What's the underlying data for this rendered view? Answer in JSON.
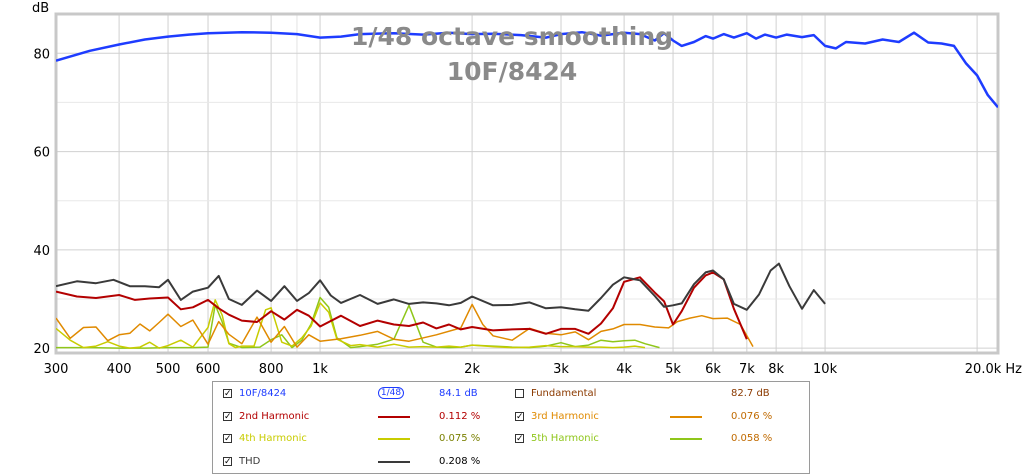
{
  "chart_data": {
    "type": "line",
    "title": "1/48 octave smoothing",
    "subtitle": "10F/8424",
    "ylabel": "dB",
    "x_scale": "log",
    "xlim": [
      300,
      22000
    ],
    "ylim": [
      19,
      88
    ],
    "yticks": [
      20,
      40,
      60,
      80
    ],
    "xtick_labels": [
      {
        "v": 300,
        "t": "300"
      },
      {
        "v": 400,
        "t": "400"
      },
      {
        "v": 500,
        "t": "500"
      },
      {
        "v": 600,
        "t": "600"
      },
      {
        "v": 800,
        "t": "800"
      },
      {
        "v": 1000,
        "t": "1k"
      },
      {
        "v": 2000,
        "t": "2k"
      },
      {
        "v": 3000,
        "t": "3k"
      },
      {
        "v": 4000,
        "t": "4k"
      },
      {
        "v": 5000,
        "t": "5k"
      },
      {
        "v": 6000,
        "t": "6k"
      },
      {
        "v": 7000,
        "t": "7k"
      },
      {
        "v": 8000,
        "t": "8k"
      },
      {
        "v": 10000,
        "t": "10k"
      },
      {
        "v": 20000,
        "t": "20.0k Hz"
      }
    ],
    "grid": true,
    "series": [
      {
        "name": "10F/8424",
        "color": "#1e3cff",
        "width": 2.5,
        "x": [
          300,
          350,
          400,
          450,
          500,
          550,
          600,
          700,
          800,
          900,
          1000,
          1100,
          1200,
          1400,
          1600,
          1800,
          2000,
          2200,
          2500,
          2800,
          3000,
          3300,
          3600,
          4000,
          4300,
          4600,
          4800,
          5000,
          5200,
          5500,
          5800,
          6000,
          6300,
          6600,
          7000,
          7300,
          7600,
          8000,
          8400,
          9000,
          9500,
          10000,
          10500,
          11000,
          12000,
          13000,
          14000,
          15000,
          16000,
          17000,
          18000,
          19000,
          20000,
          21000,
          22000
        ],
        "y": [
          78.5,
          80.5,
          81.8,
          82.8,
          83.4,
          83.8,
          84.1,
          84.3,
          84.2,
          83.9,
          83.2,
          83.4,
          83.9,
          84.1,
          83.8,
          84.2,
          83.9,
          84.0,
          83.7,
          83.2,
          83.9,
          84.3,
          83.6,
          84.2,
          83.9,
          82.6,
          84.1,
          82.6,
          81.5,
          82.3,
          83.5,
          83.0,
          83.9,
          83.2,
          84.1,
          83.0,
          83.8,
          83.2,
          83.8,
          83.3,
          83.7,
          81.5,
          81.0,
          82.3,
          82.0,
          82.8,
          82.3,
          84.2,
          82.2,
          82.0,
          81.5,
          78.0,
          75.5,
          71.5,
          69.0
        ]
      },
      {
        "name": "2nd Harmonic",
        "color": "#b30000",
        "width": 2,
        "x": [
          300,
          330,
          360,
          400,
          430,
          460,
          500,
          530,
          560,
          600,
          630,
          660,
          700,
          750,
          800,
          850,
          900,
          950,
          1000,
          1100,
          1200,
          1300,
          1400,
          1500,
          1600,
          1700,
          1800,
          1900,
          2000,
          2200,
          2400,
          2600,
          2800,
          3000,
          3200,
          3400,
          3600,
          3800,
          4000,
          4300,
          4600,
          4800,
          5000,
          5200,
          5500,
          5800,
          6000,
          6300,
          6600,
          7000
        ],
        "y": [
          31.5,
          30.5,
          30.2,
          30.8,
          29.8,
          30.1,
          30.3,
          27.9,
          28.3,
          29.8,
          28.1,
          26.8,
          25.6,
          25.3,
          27.5,
          25.8,
          27.8,
          26.6,
          24.4,
          26.6,
          24.5,
          25.6,
          24.8,
          24.5,
          25.2,
          24.0,
          24.8,
          23.8,
          24.3,
          23.6,
          23.8,
          23.9,
          22.9,
          23.9,
          23.9,
          22.9,
          25.0,
          28.1,
          33.5,
          34.4,
          31.3,
          29.5,
          24.8,
          27.5,
          32.3,
          34.8,
          35.4,
          34.0,
          28.0,
          21.8
        ]
      },
      {
        "name": "3rd Harmonic",
        "color": "#e08a00",
        "width": 1.5,
        "x": [
          300,
          320,
          340,
          360,
          380,
          400,
          420,
          440,
          460,
          480,
          500,
          530,
          560,
          600,
          630,
          660,
          700,
          750,
          800,
          850,
          900,
          950,
          1000,
          1100,
          1200,
          1300,
          1400,
          1500,
          1700,
          1900,
          2000,
          2100,
          2200,
          2400,
          2600,
          2800,
          3000,
          3200,
          3400,
          3600,
          3800,
          4000,
          4300,
          4600,
          4900,
          5100,
          5400,
          5700,
          6000,
          6400,
          6800,
          7200
        ],
        "y": [
          26.1,
          22.0,
          24.2,
          24.3,
          21.5,
          22.7,
          23.0,
          24.9,
          23.5,
          25.2,
          26.9,
          24.4,
          25.7,
          20.8,
          25.4,
          22.8,
          20.9,
          26.3,
          21.2,
          24.4,
          20.2,
          22.7,
          21.4,
          21.9,
          22.6,
          23.4,
          21.8,
          21.4,
          22.7,
          24.1,
          28.9,
          24.8,
          22.5,
          21.6,
          24.0,
          23.0,
          22.7,
          23.3,
          21.7,
          23.4,
          23.9,
          24.8,
          24.8,
          24.3,
          24.1,
          25.4,
          26.1,
          26.6,
          26.0,
          26.1,
          24.8,
          20.3
        ]
      },
      {
        "name": "4th Harmonic",
        "color": "#c8cc00",
        "width": 1.5,
        "x": [
          300,
          320,
          340,
          360,
          380,
          400,
          420,
          440,
          460,
          480,
          500,
          530,
          560,
          600,
          620,
          640,
          660,
          680,
          700,
          740,
          780,
          800,
          840,
          880,
          920,
          960,
          1000,
          1040,
          1080,
          1150,
          1200,
          1300,
          1400,
          1500,
          1600,
          1700,
          1800,
          1900,
          2000,
          2200,
          2400,
          2600,
          2800,
          3000,
          3200,
          3400,
          3600,
          3800,
          4000,
          4200,
          4400
        ],
        "y": [
          24.0,
          21.6,
          20.1,
          20.4,
          21.3,
          20.4,
          20.0,
          20.2,
          21.2,
          20.0,
          20.5,
          21.6,
          20.2,
          24.2,
          29.8,
          26.7,
          20.9,
          20.1,
          20.4,
          20.4,
          27.8,
          28.2,
          21.2,
          20.4,
          22.1,
          24.5,
          29.2,
          27.3,
          21.8,
          20.5,
          20.7,
          20.2,
          20.8,
          20.2,
          20.3,
          20.2,
          20.4,
          20.2,
          20.6,
          20.3,
          20.1,
          20.2,
          20.5,
          20.3,
          20.3,
          20.2,
          20.2,
          20.1,
          20.2,
          20.4,
          20.1
        ]
      },
      {
        "name": "5th Harmonic",
        "color": "#8fc61a",
        "width": 1.5,
        "x": [
          300,
          350,
          400,
          450,
          500,
          560,
          600,
          620,
          640,
          660,
          700,
          760,
          800,
          840,
          880,
          920,
          960,
          1000,
          1040,
          1080,
          1150,
          1200,
          1300,
          1400,
          1500,
          1600,
          1700,
          1800,
          1900,
          2000,
          2200,
          2400,
          2600,
          2800,
          3000,
          3200,
          3400,
          3600,
          3800,
          4000,
          4200,
          4400,
          4700
        ],
        "y": [
          20.1,
          20.1,
          20.0,
          20.0,
          20.1,
          20.1,
          20.2,
          28.8,
          25.3,
          21.0,
          20.1,
          20.2,
          21.7,
          22.7,
          20.1,
          21.6,
          24.9,
          30.3,
          28.3,
          22.1,
          20.1,
          20.3,
          20.8,
          21.8,
          28.7,
          21.2,
          20.2,
          20.1,
          20.2,
          20.6,
          20.4,
          20.2,
          20.1,
          20.4,
          21.1,
          20.3,
          20.6,
          21.6,
          21.3,
          21.5,
          21.6,
          20.9,
          20.1
        ]
      },
      {
        "name": "THD",
        "color": "#3a3a3a",
        "width": 2,
        "x": [
          300,
          330,
          360,
          390,
          420,
          450,
          480,
          500,
          530,
          560,
          600,
          630,
          660,
          700,
          750,
          800,
          850,
          900,
          950,
          1000,
          1050,
          1100,
          1200,
          1300,
          1400,
          1500,
          1600,
          1700,
          1800,
          1900,
          2000,
          2200,
          2400,
          2600,
          2800,
          3000,
          3200,
          3400,
          3600,
          3800,
          4000,
          4300,
          4600,
          4800,
          5000,
          5200,
          5500,
          5800,
          6000,
          6300,
          6600,
          7000,
          7400,
          7800,
          8100,
          8500,
          9000,
          9500,
          10000
        ],
        "y": [
          32.6,
          33.6,
          33.2,
          33.9,
          32.6,
          32.6,
          32.4,
          33.9,
          29.8,
          31.5,
          32.3,
          34.7,
          30.0,
          28.8,
          31.7,
          29.6,
          32.6,
          29.6,
          31.2,
          33.8,
          30.7,
          29.2,
          30.8,
          29.0,
          29.9,
          29.0,
          29.3,
          29.1,
          28.7,
          29.2,
          30.5,
          28.7,
          28.8,
          29.3,
          28.1,
          28.3,
          27.9,
          27.6,
          30.2,
          32.9,
          34.4,
          33.8,
          30.6,
          28.4,
          28.7,
          29.1,
          33.0,
          35.4,
          35.8,
          34.0,
          29.0,
          27.8,
          30.9,
          35.8,
          37.2,
          32.6,
          28.0,
          31.8,
          29.0
        ]
      }
    ]
  },
  "legend": {
    "rows": [
      [
        {
          "label": "10F/8424",
          "checked": true,
          "swatch": "smoothing",
          "smoothing_text": "1/48",
          "value": "84.1 dB",
          "color": "#1e3cff"
        },
        {
          "label": "Fundamental",
          "checked": false,
          "swatch": "none",
          "value": "82.7 dB",
          "color": "#8b3a00"
        }
      ],
      [
        {
          "label": "2nd Harmonic",
          "checked": true,
          "swatch": "line",
          "value": "0.112 %",
          "color": "#b30000"
        },
        {
          "label": "3rd Harmonic",
          "checked": true,
          "swatch": "line",
          "value": "0.076 %",
          "color": "#e08a00"
        }
      ],
      [
        {
          "label": "4th Harmonic",
          "checked": true,
          "swatch": "line",
          "value": "0.075 %",
          "color": "#c8cc00"
        },
        {
          "label": "5th Harmonic",
          "checked": true,
          "swatch": "line",
          "value": "0.058 %",
          "color": "#8fc61a"
        }
      ],
      [
        {
          "label": "THD",
          "checked": true,
          "swatch": "line",
          "value": "0.208 %",
          "color": "#3a3a3a"
        }
      ]
    ]
  }
}
